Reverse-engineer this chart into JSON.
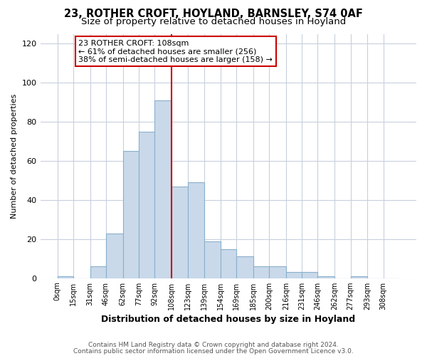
{
  "title": "23, ROTHER CROFT, HOYLAND, BARNSLEY, S74 0AF",
  "subtitle": "Size of property relative to detached houses in Hoyland",
  "xlabel": "Distribution of detached houses by size in Hoyland",
  "ylabel": "Number of detached properties",
  "bin_labels": [
    "0sqm",
    "15sqm",
    "31sqm",
    "46sqm",
    "62sqm",
    "77sqm",
    "92sqm",
    "108sqm",
    "123sqm",
    "139sqm",
    "154sqm",
    "169sqm",
    "185sqm",
    "200sqm",
    "216sqm",
    "231sqm",
    "246sqm",
    "262sqm",
    "277sqm",
    "293sqm",
    "308sqm"
  ],
  "bin_edges": [
    0,
    15,
    31,
    46,
    62,
    77,
    92,
    108,
    123,
    139,
    154,
    169,
    185,
    200,
    216,
    231,
    246,
    262,
    277,
    293,
    308
  ],
  "bar_heights": [
    1,
    0,
    6,
    23,
    65,
    75,
    91,
    47,
    49,
    19,
    15,
    11,
    6,
    6,
    3,
    3,
    1,
    0,
    1,
    0,
    0
  ],
  "bar_color": "#c9d9ea",
  "bar_edge_color": "#8ab0cc",
  "vline_x": 108,
  "vline_color": "#cc0000",
  "annotation_title": "23 ROTHER CROFT: 108sqm",
  "annotation_line1": "← 61% of detached houses are smaller (256)",
  "annotation_line2": "38% of semi-detached houses are larger (158) →",
  "annotation_box_color": "#ffffff",
  "annotation_box_edge": "#cc0000",
  "ylim": [
    0,
    125
  ],
  "yticks": [
    0,
    20,
    40,
    60,
    80,
    100,
    120
  ],
  "footer1": "Contains HM Land Registry data © Crown copyright and database right 2024.",
  "footer2": "Contains public sector information licensed under the Open Government Licence v3.0.",
  "bg_color": "#ffffff",
  "plot_bg_color": "#ffffff",
  "grid_color": "#c8d0dc",
  "title_fontsize": 10.5,
  "subtitle_fontsize": 9.5,
  "ylabel_fontsize": 8,
  "xlabel_fontsize": 9
}
